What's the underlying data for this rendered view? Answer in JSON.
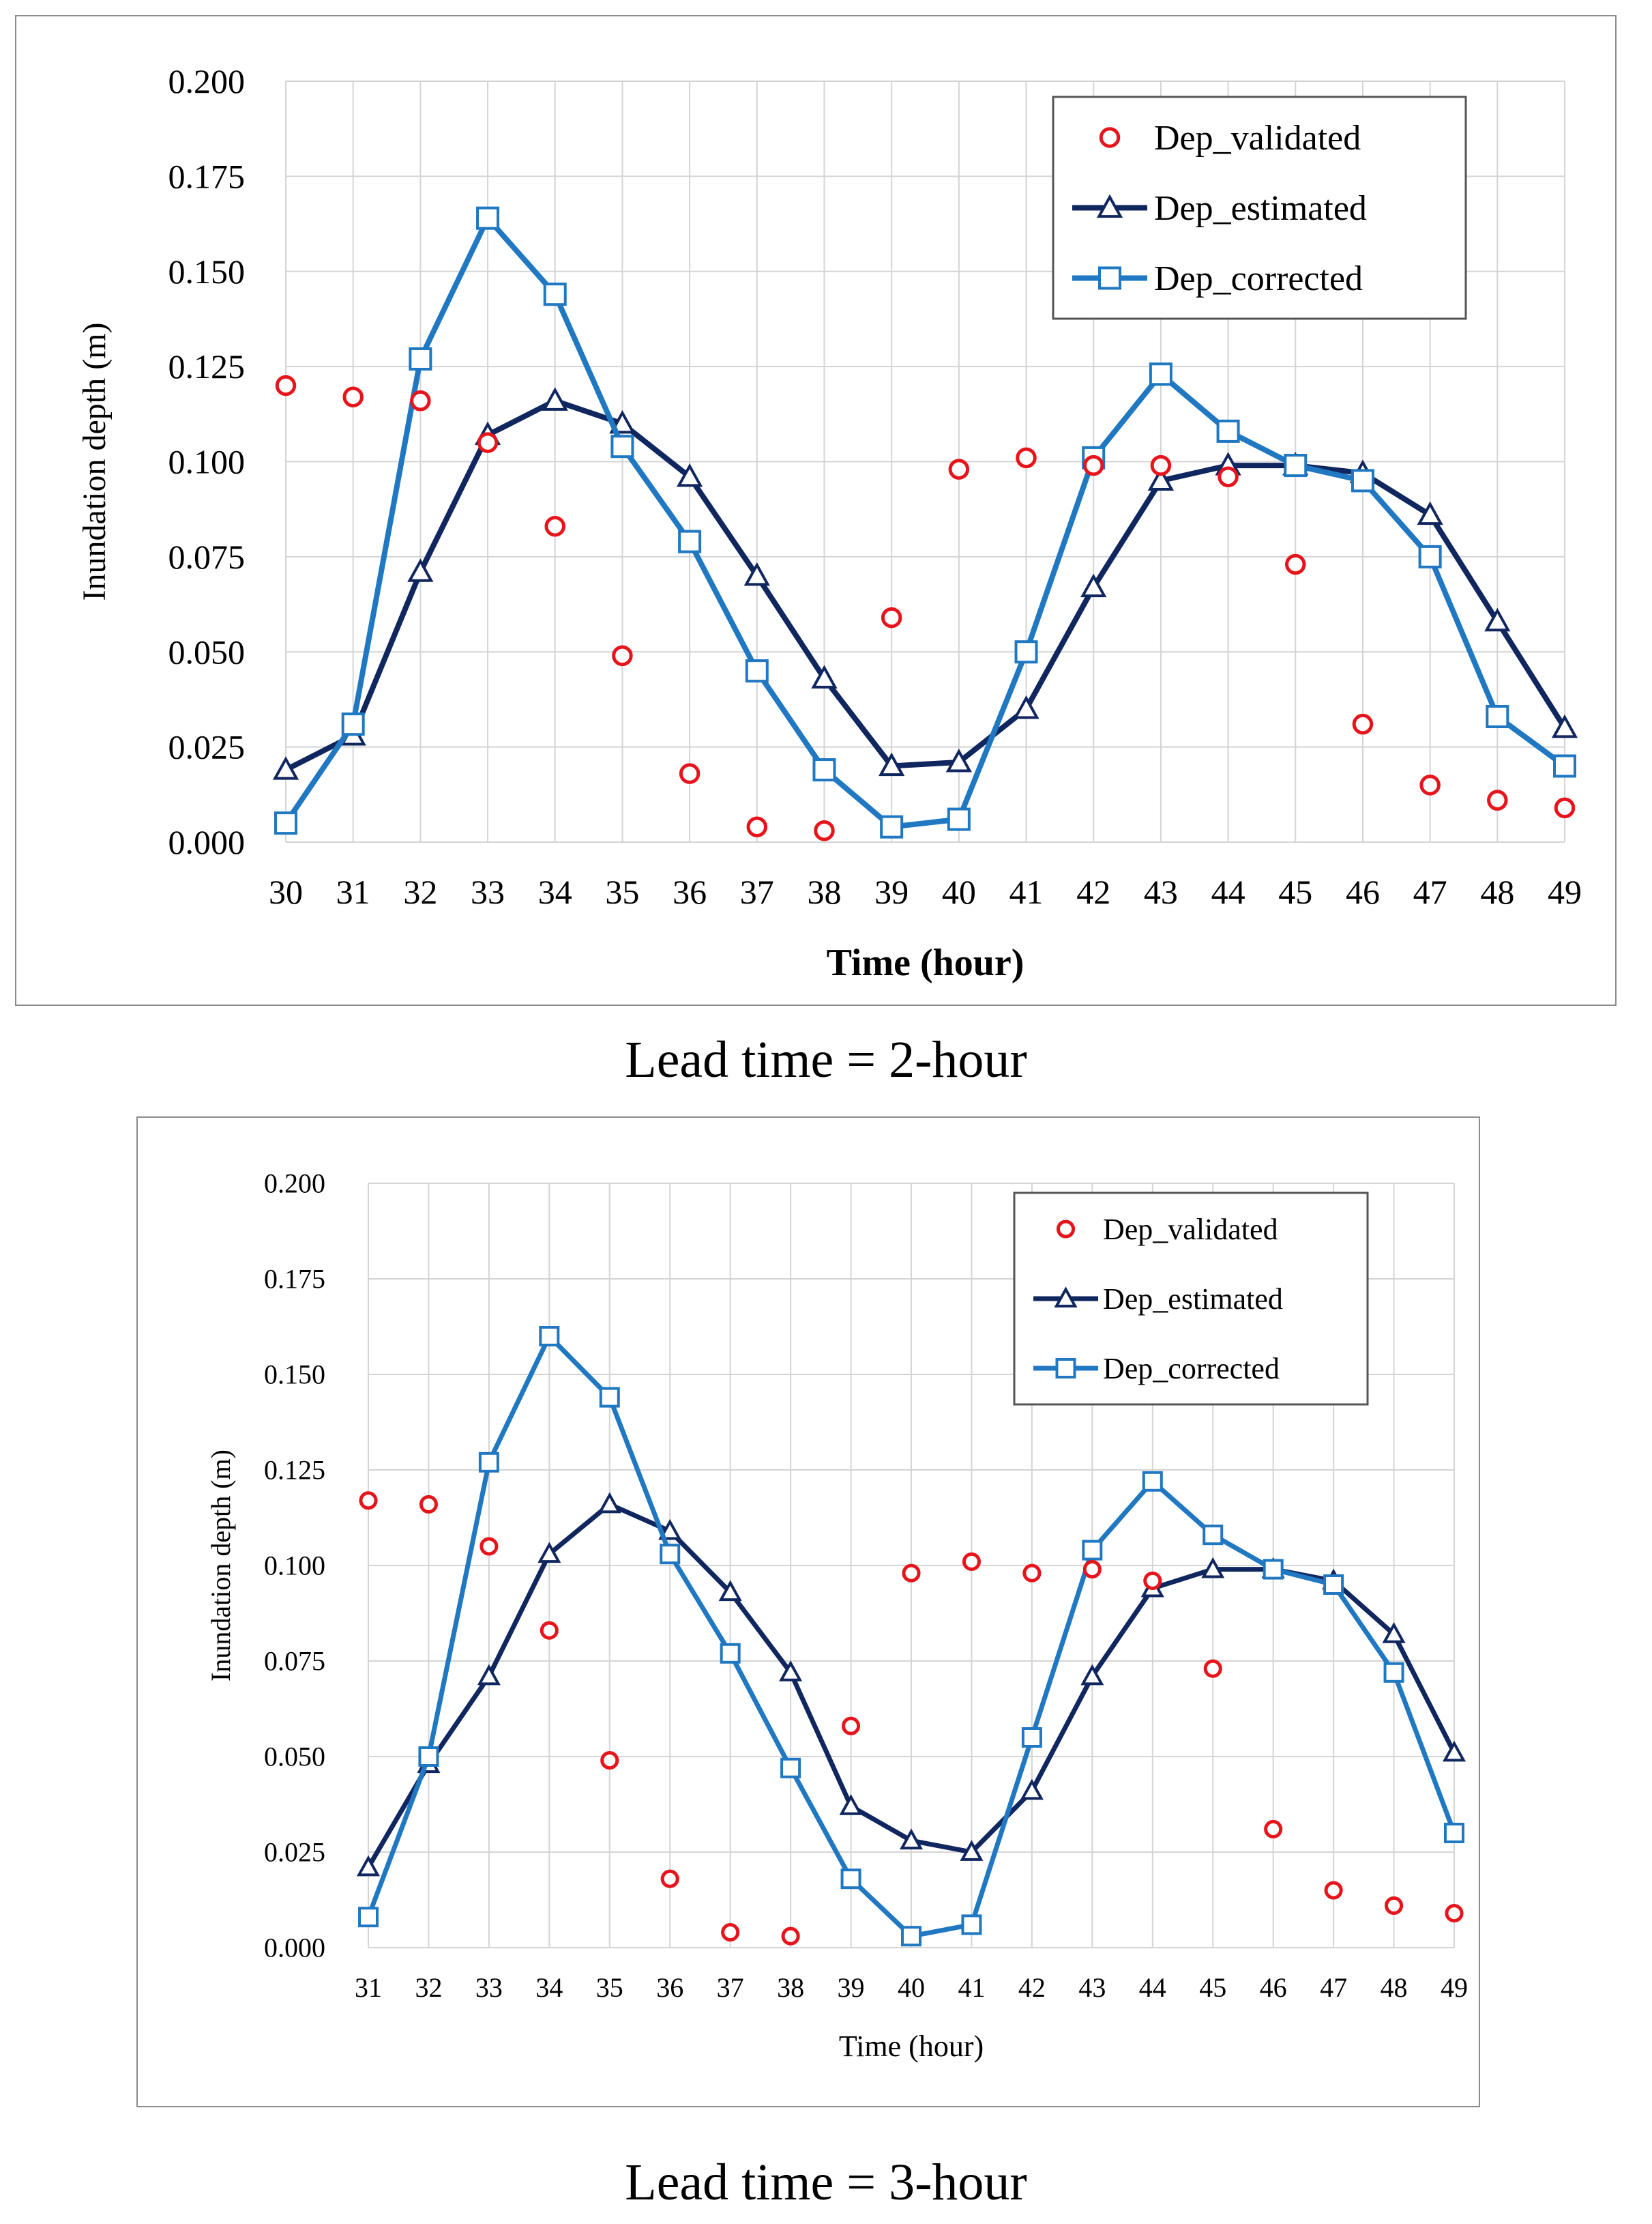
{
  "colors": {
    "validated": "#e8141c",
    "estimated": "#10265f",
    "corrected": "#1f78c1",
    "grid": "#d4d4d4"
  },
  "captions": [
    "Lead time = 2-hour",
    "Lead time = 3-hour"
  ],
  "chart_data": [
    {
      "type": "line",
      "title": "",
      "xlabel": "Time (hour)",
      "ylabel": "Inundation depth (m)",
      "ylim": [
        0,
        0.2
      ],
      "yticks": [
        "0.000",
        "0.025",
        "0.050",
        "0.075",
        "0.100",
        "0.125",
        "0.150",
        "0.175",
        "0.200"
      ],
      "legend_position": "top-right",
      "categories": [
        "30",
        "31",
        "32",
        "33",
        "34",
        "35",
        "36",
        "37",
        "38",
        "39",
        "40",
        "41",
        "42",
        "43",
        "44",
        "45",
        "46",
        "47",
        "48",
        "49"
      ],
      "series": [
        {
          "name": "Dep_validated",
          "style": "circle-markers",
          "values": [
            0.12,
            0.117,
            0.116,
            0.105,
            0.083,
            0.049,
            0.018,
            0.004,
            0.003,
            0.059,
            0.098,
            0.101,
            0.099,
            0.099,
            0.096,
            0.073,
            0.031,
            0.015,
            0.011,
            0.009
          ]
        },
        {
          "name": "Dep_estimated",
          "style": "line-triangle",
          "values": [
            0.019,
            0.028,
            0.071,
            0.107,
            0.116,
            0.11,
            0.096,
            0.07,
            0.043,
            0.02,
            0.021,
            0.035,
            0.067,
            0.095,
            0.099,
            0.099,
            0.097,
            0.086,
            0.058,
            0.03
          ]
        },
        {
          "name": "Dep_corrected",
          "style": "line-square",
          "values": [
            0.005,
            0.031,
            0.127,
            0.164,
            0.144,
            0.104,
            0.079,
            0.045,
            0.019,
            0.004,
            0.006,
            0.05,
            0.101,
            0.123,
            0.108,
            0.099,
            0.095,
            0.075,
            0.033,
            0.02
          ]
        }
      ]
    },
    {
      "type": "line",
      "title": "",
      "xlabel": "Time (hour)",
      "ylabel": "Inundation depth (m)",
      "ylim": [
        0,
        0.2
      ],
      "yticks": [
        "0.000",
        "0.025",
        "0.050",
        "0.075",
        "0.100",
        "0.125",
        "0.150",
        "0.175",
        "0.200"
      ],
      "legend_position": "top-right",
      "categories": [
        "31",
        "32",
        "33",
        "34",
        "35",
        "36",
        "37",
        "38",
        "39",
        "40",
        "41",
        "42",
        "43",
        "44",
        "45",
        "46",
        "47",
        "48",
        "49"
      ],
      "series": [
        {
          "name": "Dep_validated",
          "style": "circle-markers",
          "values": [
            0.117,
            0.116,
            0.105,
            0.083,
            0.049,
            0.018,
            0.004,
            0.003,
            0.058,
            0.098,
            0.101,
            0.098,
            0.099,
            0.096,
            0.073,
            0.031,
            0.015,
            0.011,
            0.009
          ]
        },
        {
          "name": "Dep_estimated",
          "style": "line-triangle",
          "values": [
            0.021,
            0.048,
            0.071,
            0.103,
            0.116,
            0.109,
            0.093,
            0.072,
            0.037,
            0.028,
            0.025,
            0.041,
            0.071,
            0.094,
            0.099,
            0.099,
            0.096,
            0.082,
            0.051
          ]
        },
        {
          "name": "Dep_corrected",
          "style": "line-square",
          "values": [
            0.008,
            0.05,
            0.127,
            0.16,
            0.144,
            0.103,
            0.077,
            0.047,
            0.018,
            0.003,
            0.006,
            0.055,
            0.104,
            0.122,
            0.108,
            0.099,
            0.095,
            0.072,
            0.03
          ]
        }
      ]
    }
  ]
}
